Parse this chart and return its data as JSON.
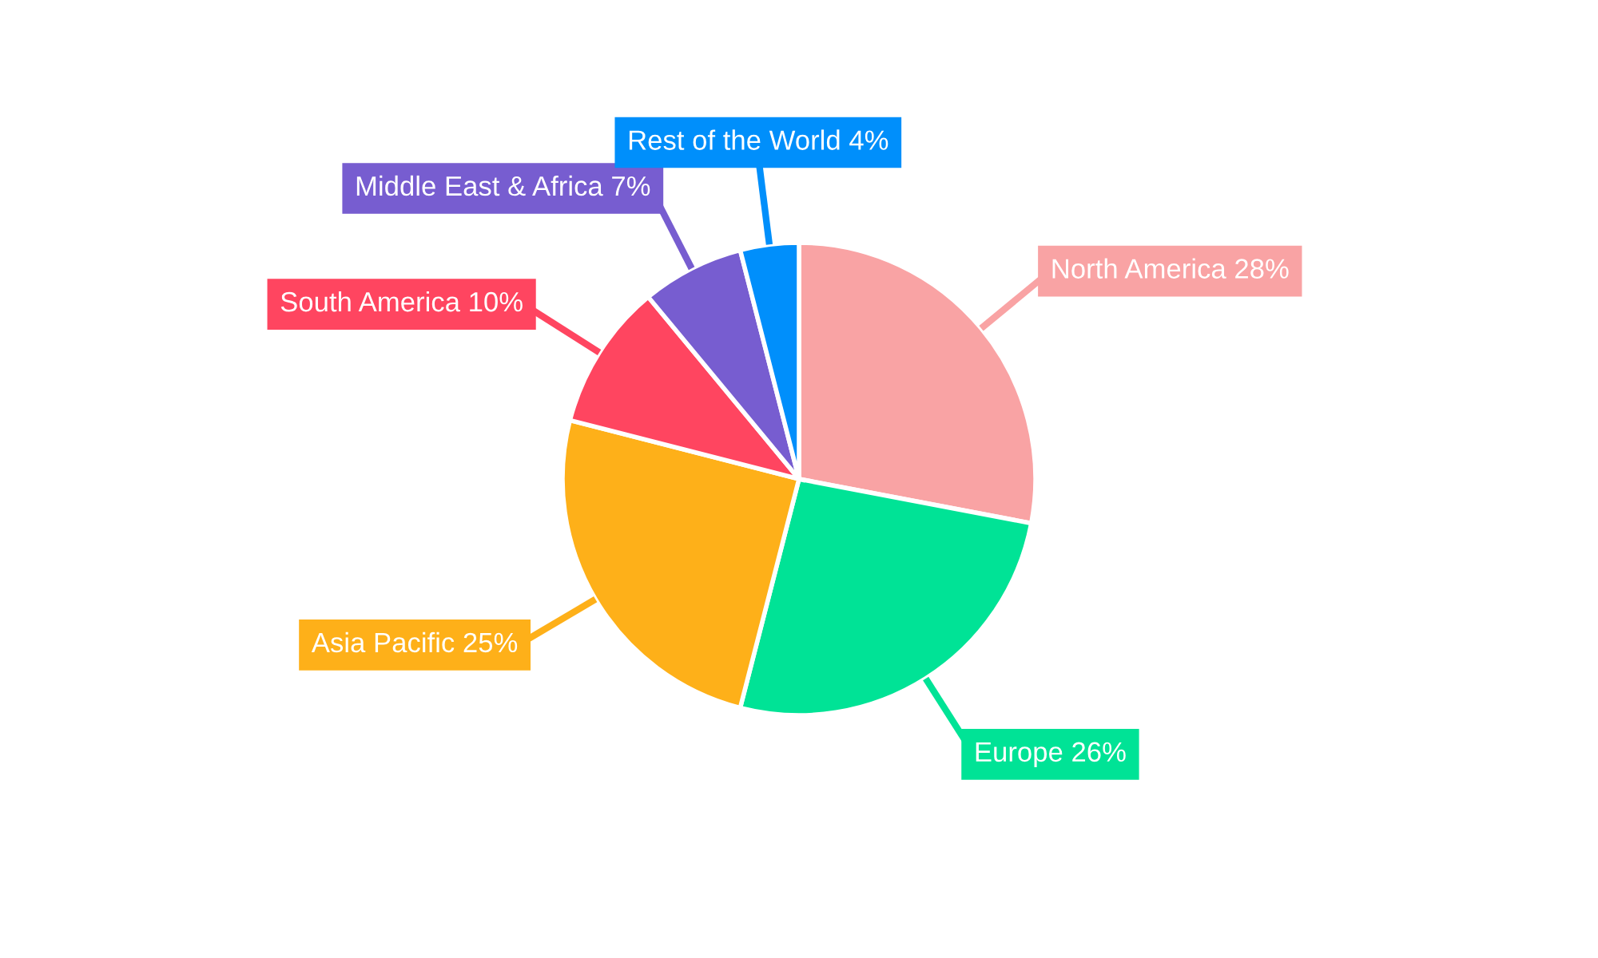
{
  "chart_data": {
    "type": "pie",
    "categories": [
      "North America",
      "Europe",
      "Asia Pacific",
      "South America",
      "Middle East & Africa",
      "Rest of the World"
    ],
    "values": [
      28,
      26,
      25,
      10,
      7,
      4
    ],
    "value_labels": [
      "28%",
      "26%",
      "25%",
      "10%",
      "7%",
      "4%"
    ],
    "colors": [
      "#f9a3a4",
      "#00e396",
      "#feb019",
      "#ff4560",
      "#775dd0",
      "#008ffb"
    ],
    "legend": false
  }
}
